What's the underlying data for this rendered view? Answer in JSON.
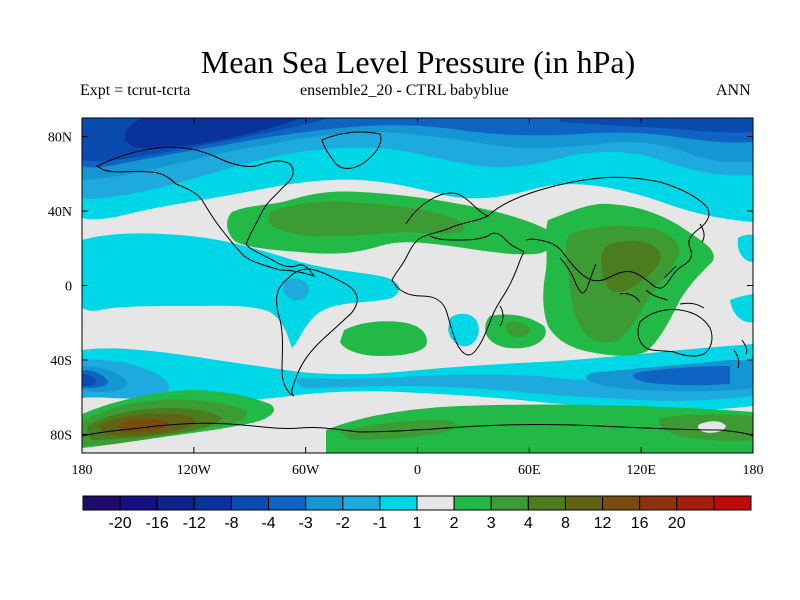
{
  "title": "Mean Sea Level Pressure (in hPa)",
  "subtitle_left": "Expt = tcrut-tcrta",
  "subtitle_center": "ensemble2_20 - CTRL babyblue",
  "subtitle_right": "ANN",
  "x_ticks": [
    {
      "lon": -180,
      "label": "180"
    },
    {
      "lon": -120,
      "label": "120W"
    },
    {
      "lon": -60,
      "label": "60W"
    },
    {
      "lon": 0,
      "label": "0"
    },
    {
      "lon": 60,
      "label": "60E"
    },
    {
      "lon": 120,
      "label": "120E"
    },
    {
      "lon": 180,
      "label": "180"
    }
  ],
  "y_ticks": [
    {
      "lat": 80,
      "label": "80N"
    },
    {
      "lat": 40,
      "label": "40N"
    },
    {
      "lat": 0,
      "label": "0"
    },
    {
      "lat": -40,
      "label": "40S"
    },
    {
      "lat": -80,
      "label": "80S"
    }
  ],
  "colorbar": {
    "colors": [
      "#1f0a6e",
      "#140f82",
      "#0f238c",
      "#0a329b",
      "#0a4baf",
      "#0f64c3",
      "#1496d2",
      "#1eaadc",
      "#00d7e6",
      "#e6e6e6",
      "#23b946",
      "#3c9b32",
      "#4b7d1e",
      "#5f6414",
      "#784b0f",
      "#8c320f",
      "#a51e0a",
      "#be0a0a"
    ],
    "labels": [
      "-20",
      "-16",
      "-12",
      "-8",
      "-4",
      "-3",
      "-2",
      "-1",
      "1",
      "2",
      "3",
      "4",
      "8",
      "12",
      "16",
      "20"
    ]
  },
  "colors": {
    "neutral": "#e6e6e6",
    "blue_levels": [
      "#00d7e6",
      "#1eaadc",
      "#1496d2",
      "#0f64c3",
      "#0a4baf",
      "#0a329b",
      "#0f238c"
    ],
    "green_levels": [
      "#23b946",
      "#3c9b32",
      "#4b7d1e",
      "#5f6414",
      "#784b0f"
    ]
  }
}
